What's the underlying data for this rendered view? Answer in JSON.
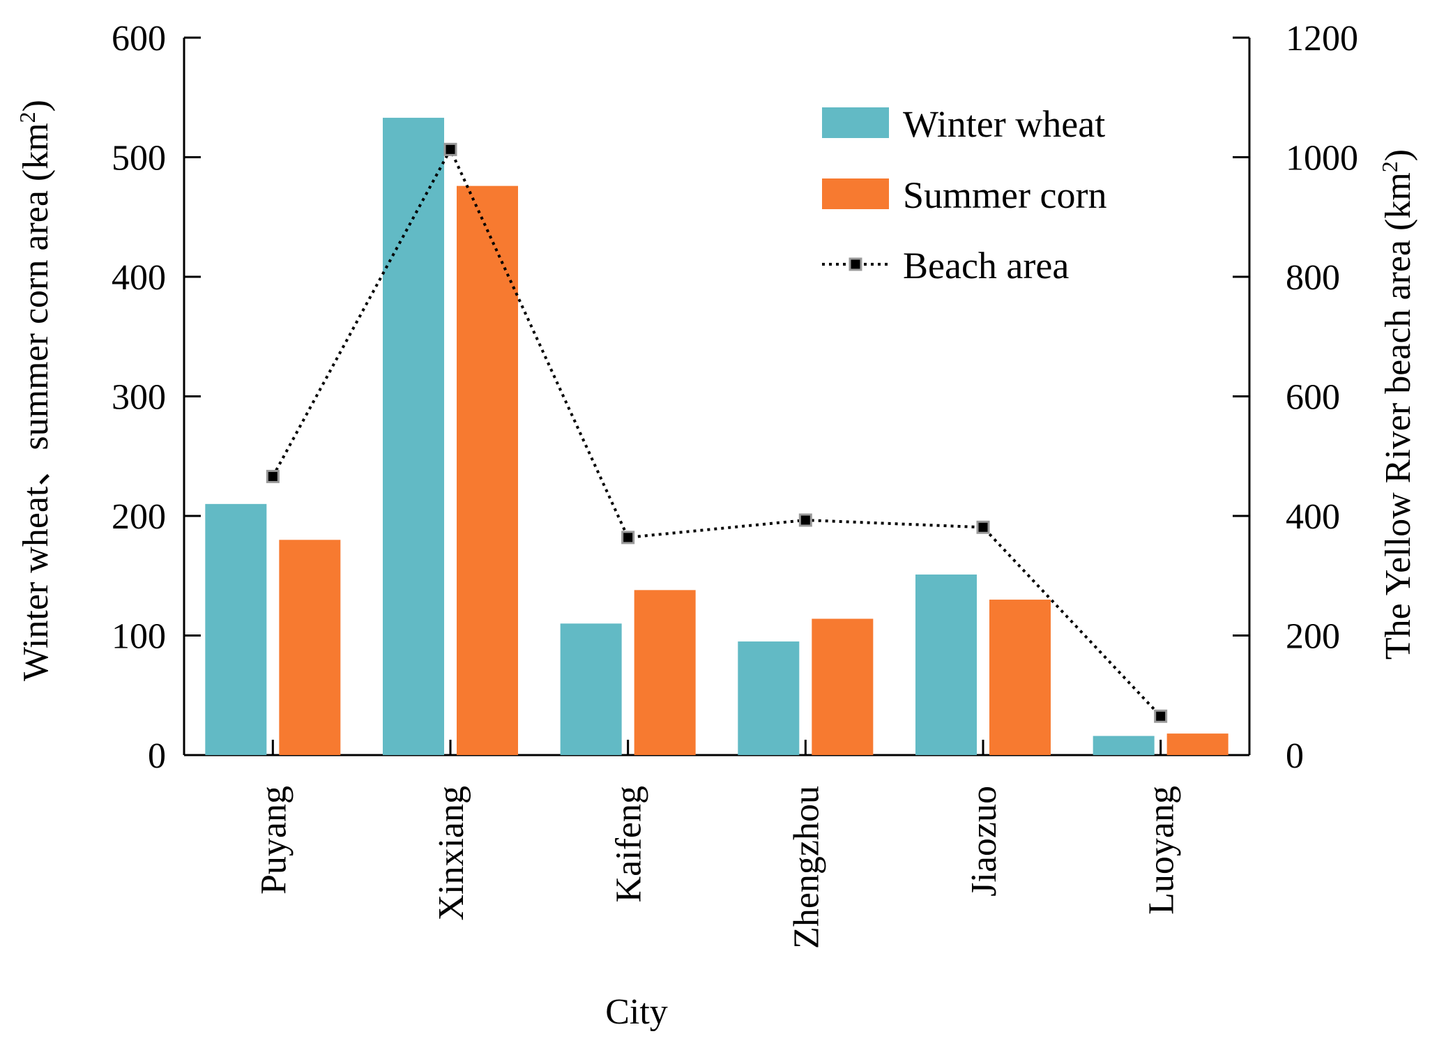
{
  "chart_data": {
    "type": "bar",
    "categories": [
      "Puyang",
      "Xinxiang",
      "Kaifeng",
      "Zhengzhou",
      "Jiaozuo",
      "Luoyang"
    ],
    "series": [
      {
        "name": "Winter wheat",
        "axis": "left",
        "type": "bar",
        "color": "#62BAC5",
        "values": [
          210,
          533,
          110,
          95,
          151,
          16
        ]
      },
      {
        "name": "Summer corn",
        "axis": "left",
        "type": "bar",
        "color": "#F77A30",
        "values": [
          180,
          476,
          138,
          114,
          130,
          18
        ]
      },
      {
        "name": "Beach area",
        "axis": "right",
        "type": "line",
        "color": "#000000",
        "values": [
          466,
          1013,
          364,
          393,
          381,
          65
        ]
      }
    ],
    "xlabel": "City",
    "ylabel_main": "Winter wheat、summer corn area (km",
    "ylabel_main_sup": "2",
    "ylabel_main_end": ")",
    "ylabel_right_main": "The Yellow River beach area (km",
    "ylabel_right_sup": "2",
    "ylabel_right_end": ")",
    "ylim": [
      0,
      600
    ],
    "yticks": [
      "0",
      "100",
      "200",
      "300",
      "400",
      "500",
      "600"
    ],
    "y2lim": [
      0,
      1200
    ],
    "y2ticks": [
      "0",
      "200",
      "400",
      "600",
      "800",
      "1000",
      "1200"
    ],
    "legend_position": "top-right"
  }
}
